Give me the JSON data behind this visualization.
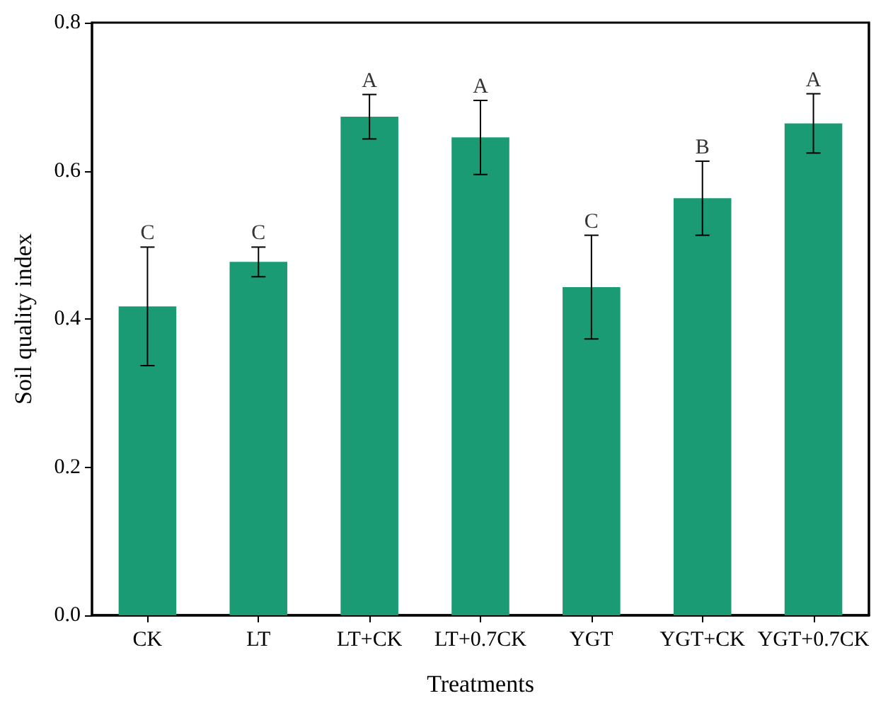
{
  "chart_data": {
    "type": "bar",
    "xlabel": "Treatments",
    "ylabel": "Soil quality index",
    "categories": [
      "CK",
      "LT",
      "LT+CK",
      "LT+0.7CK",
      "YGT",
      "YGT+CK",
      "YGT+0.7CK"
    ],
    "values": [
      0.417,
      0.477,
      0.673,
      0.645,
      0.443,
      0.563,
      0.664
    ],
    "errors": [
      0.08,
      0.02,
      0.03,
      0.05,
      0.07,
      0.05,
      0.04
    ],
    "color": "#1a9b73",
    "ylim": [
      0,
      0.8
    ],
    "yticks": [
      {
        "value": 0,
        "label": "0.0"
      },
      0.2,
      0.4,
      0.6,
      0.8
    ],
    "grid": false,
    "annotations": [
      {
        "text": "C",
        "x": "CK",
        "y": 0.497
      },
      {
        "text": "C",
        "x": "LT",
        "y": 0.497
      },
      {
        "text": "A",
        "x": "LT+CK",
        "y": 0.703
      },
      {
        "text": "A",
        "x": "LT+0.7CK",
        "y": 0.695
      },
      {
        "text": "C",
        "x": "YGT",
        "y": 0.513
      },
      {
        "text": "B",
        "x": "YGT+CK",
        "y": 0.613
      },
      {
        "text": "A",
        "x": "YGT+0.7CK",
        "y": 0.704
      }
    ]
  }
}
